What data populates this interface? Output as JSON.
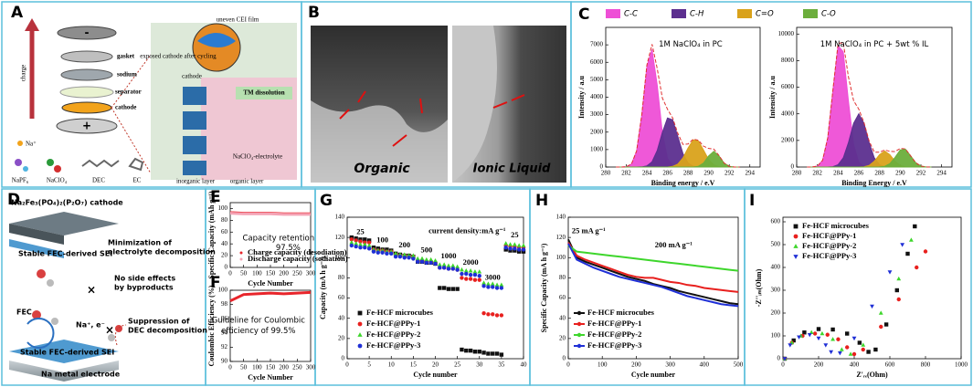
{
  "figure": {
    "letters": [
      "A",
      "B",
      "C",
      "D",
      "E",
      "F",
      "G",
      "H",
      "I"
    ],
    "A": {
      "charge": "charge",
      "gasket": "gasket",
      "sodium": "sodium",
      "separator": "separator",
      "cathode": "cathode",
      "na": "Na⁺",
      "salt1": "NaPF₆",
      "salt2": "NaClO₄",
      "dec": "DEC",
      "ec": "EC",
      "cei": "uneven CEI film",
      "exposed": "exposed cathode after cycling",
      "cathode2": "cathode",
      "tm": "TM dissolution",
      "inorganic": "inorganic layer",
      "organic": "organic layer",
      "electrolyte": "NaClO₄-electrolyte"
    },
    "B": {
      "left": "Organic",
      "right": "Ionic Liquid"
    },
    "D": {
      "cathode": "Na₂Fe₃(PO₄)₂(P₂O₇) cathode",
      "sei1": "Stable FEC-derived SEI",
      "min1": "Minimization of",
      "min2": "electrolyte decomposition",
      "side1": "No side effects",
      "side2": "by byproducts",
      "fec": "FEC",
      "nae": "Na⁺, e⁻",
      "sup1": "Suppression of",
      "sup2": "DEC decomposition",
      "sei2": "Stable FEC-derived SEI",
      "anode": "Na metal electrode"
    }
  },
  "chart_data": [
    {
      "type": "area",
      "x_label": "Binding energy / e.V",
      "y_label": "Intensity / a.u",
      "legend": "top",
      "annotations": [
        "1M NaClO₄ in PC"
      ],
      "x": [
        281,
        281.5,
        282,
        282.5,
        283,
        283.5,
        284,
        284.5,
        285,
        285.5,
        286,
        286.5,
        287,
        287.5,
        288,
        288.5,
        289,
        289.5,
        290,
        290.5,
        291,
        291.5,
        292,
        292.5,
        293
      ],
      "xlim": [
        280,
        295
      ],
      "xticks": [
        280,
        282,
        284,
        286,
        288,
        290,
        292,
        294
      ],
      "ylim": [
        0,
        8000
      ],
      "yticks": [
        0,
        1000,
        2000,
        3000,
        4000,
        5000,
        6000,
        7000
      ],
      "envelope_color": "#e03030",
      "envelope": [
        0,
        0,
        20,
        170,
        920,
        2980,
        5846,
        7033,
        5651,
        3958,
        3310,
        2815,
        1934,
        1295,
        1321,
        1596,
        1537,
        1195,
        1063,
        1028,
        662,
        227,
        40,
        3,
        0
      ],
      "series": [
        {
          "name": "C-C",
          "color": "#ee4fd6",
          "values": [
            0,
            0,
            20,
            170,
            920,
            2970,
            5780,
            6730,
            4710,
            1980,
            500,
            75,
            7,
            0,
            0,
            0,
            0,
            0,
            0,
            0,
            0,
            0,
            0,
            0,
            0
          ]
        },
        {
          "name": "C-H",
          "color": "#5c2f8f",
          "values": [
            0,
            0,
            0,
            0,
            0,
            10,
            66,
            303,
            941,
            1978,
            2810,
            2703,
            1759,
            775,
            230,
            46,
            6,
            0,
            0,
            0,
            0,
            0,
            0,
            0,
            0
          ]
        },
        {
          "name": "C=O",
          "color": "#d9a21b",
          "values": [
            0,
            0,
            0,
            0,
            0,
            0,
            0,
            0,
            0,
            0,
            0,
            37,
            168,
            520,
            1091,
            1550,
            1491,
            971,
            427,
            128,
            26,
            3,
            0,
            0,
            0
          ]
        },
        {
          "name": "C-O",
          "color": "#6cae3c",
          "values": [
            0,
            0,
            0,
            0,
            0,
            0,
            0,
            0,
            0,
            0,
            0,
            0,
            0,
            0,
            0,
            0,
            40,
            224,
            636,
            900,
            636,
            224,
            40,
            3,
            0
          ]
        }
      ]
    },
    {
      "type": "area",
      "x_label": "Binding Energy / e.V",
      "y_label": "Intensity / a.u",
      "annotations": [
        "1M NaClO₄ in PC + 5wt % IL"
      ],
      "x": [
        281,
        281.5,
        282,
        282.5,
        283,
        283.5,
        284,
        284.5,
        285,
        285.5,
        286,
        286.5,
        287,
        287.5,
        288,
        288.5,
        289,
        289.5,
        290,
        290.5,
        291,
        291.5,
        292,
        292.5,
        293
      ],
      "xlim": [
        280,
        295
      ],
      "xticks": [
        280,
        282,
        284,
        286,
        288,
        290,
        292,
        294
      ],
      "ylim": [
        0,
        10500
      ],
      "yticks": [
        0,
        2000,
        4000,
        6000,
        8000,
        10000
      ],
      "envelope_color": "#e03030",
      "envelope": [
        0,
        6,
        68,
        497,
        2186,
        5792,
        9295,
        9354,
        6776,
        4987,
        4346,
        3353,
        1950,
        1121,
        1112,
        1282,
        1181,
        1161,
        1397,
        1364,
        849,
        322,
        73,
        10,
        0
      ],
      "series": [
        {
          "color": "#ee4fd6",
          "values": [
            0,
            6,
            68,
            497,
            2186,
            5762,
            9119,
            8666,
            4946,
            1697,
            346,
            43,
            0,
            0,
            0,
            0,
            0,
            0,
            0,
            0,
            0,
            0,
            0,
            0,
            0
          ]
        },
        {
          "color": "#5c2f8f",
          "values": [
            0,
            0,
            0,
            0,
            0,
            30,
            176,
            688,
            1830,
            3290,
            4000,
            3290,
            1830,
            688,
            176,
            30,
            0,
            0,
            0,
            0,
            0,
            0,
            0,
            0,
            0
          ]
        },
        {
          "color": "#d9a21b",
          "values": [
            0,
            0,
            0,
            0,
            0,
            0,
            0,
            0,
            0,
            0,
            0,
            20,
            120,
            433,
            930,
            1200,
            930,
            433,
            120,
            20,
            0,
            0,
            0,
            0,
            0
          ]
        },
        {
          "color": "#6cae3c",
          "values": [
            0,
            0,
            0,
            0,
            0,
            0,
            0,
            0,
            0,
            0,
            0,
            0,
            0,
            0,
            6,
            52,
            251,
            728,
            1277,
            1344,
            849,
            322,
            73,
            10,
            0
          ]
        }
      ]
    },
    {
      "type": "line",
      "x_label": "Cycle Number",
      "y_label": "Specific Capacity (mAh g⁻¹)",
      "legend": "lower right",
      "annotations": [
        "Capacity retention",
        "97.5%"
      ],
      "x": [
        0,
        50,
        100,
        150,
        200,
        250,
        300
      ],
      "xlim": [
        0,
        300
      ],
      "xticks": [
        0,
        50,
        100,
        150,
        200,
        250,
        300
      ],
      "ylim": [
        0,
        110
      ],
      "yticks": [
        0,
        20,
        40,
        60,
        80,
        100
      ],
      "series": [
        {
          "name": "Charge capacity (desodiation)",
          "color": "#e8252b",
          "marker": "circle",
          "values": [
            93,
            92,
            92,
            92,
            91,
            91,
            91
          ]
        },
        {
          "name": "Discharge capacity (sodiation)",
          "color": "#f4a3b5",
          "marker": "circle",
          "values": [
            92,
            91,
            91,
            91,
            90,
            90,
            90
          ]
        }
      ]
    },
    {
      "type": "line",
      "x_label": "Cycle Number",
      "y_label": "Coulombic Efficiency (%)",
      "annotations": [
        "Guideline for Coulombic",
        "efficiency of 99.5%"
      ],
      "x": [
        0,
        50,
        100,
        150,
        200,
        250,
        300
      ],
      "xlim": [
        0,
        300
      ],
      "xticks": [
        0,
        50,
        100,
        150,
        200,
        250,
        300
      ],
      "ylim": [
        90,
        100
      ],
      "yticks": [
        90,
        92,
        94,
        96,
        98,
        100
      ],
      "series": [
        {
          "color": "#e8252b",
          "values": [
            98.5,
            99.4,
            99.5,
            99.6,
            99.5,
            99.6,
            99.7
          ]
        }
      ]
    },
    {
      "type": "scatter",
      "x_label": "Cycle number",
      "y_label": "Capacity (mA h g⁻¹)",
      "legend": "lower left",
      "annotations": [
        "current density:mA g⁻¹"
      ],
      "rate_labels": [
        "25",
        "100",
        "200",
        "500",
        "1000",
        "2000",
        "3000",
        "25"
      ],
      "x": [
        1,
        2,
        3,
        4,
        5,
        6,
        7,
        8,
        9,
        10,
        11,
        12,
        13,
        14,
        15,
        16,
        17,
        18,
        19,
        20,
        21,
        22,
        23,
        24,
        25,
        26,
        27,
        28,
        29,
        30,
        31,
        32,
        33,
        34,
        35,
        36,
        37,
        38,
        39,
        40
      ],
      "xlim": [
        0,
        40
      ],
      "xticks": [
        0,
        5,
        10,
        15,
        20,
        25,
        30,
        35,
        40
      ],
      "ylim": [
        0,
        140
      ],
      "yticks": [
        0,
        20,
        40,
        60,
        80,
        100,
        120,
        140
      ],
      "series": [
        {
          "name": "Fe-HCF microcubes",
          "color": "#111111",
          "marker": "square",
          "values": [
            120,
            119,
            118,
            118,
            117,
            110,
            109,
            108,
            108,
            107,
            104,
            103,
            102,
            102,
            101,
            96,
            96,
            95,
            95,
            94,
            70,
            70,
            69,
            69,
            69,
            9,
            8,
            8,
            7,
            7,
            6,
            5,
            5,
            5,
            4,
            108,
            107,
            107,
            106,
            106
          ]
        },
        {
          "name": "Fe-HCF@PPy-1",
          "color": "#e8201e",
          "marker": "circle",
          "values": [
            118,
            117,
            116,
            115,
            115,
            108,
            107,
            107,
            106,
            106,
            103,
            102,
            102,
            101,
            101,
            97,
            97,
            96,
            96,
            95,
            90,
            90,
            89,
            89,
            88,
            80,
            79,
            79,
            78,
            78,
            45,
            44,
            44,
            43,
            43,
            112,
            111,
            111,
            110,
            110
          ]
        },
        {
          "name": "Fe-HCF@PPy-2",
          "color": "#3ed62c",
          "marker": "triangle",
          "values": [
            115,
            114,
            113,
            113,
            112,
            108,
            107,
            107,
            106,
            106,
            104,
            103,
            103,
            102,
            102,
            99,
            99,
            98,
            98,
            97,
            93,
            93,
            92,
            92,
            91,
            88,
            87,
            87,
            86,
            86,
            75,
            74,
            74,
            73,
            73,
            114,
            113,
            113,
            112,
            112
          ]
        },
        {
          "name": "Fe-HCF@PPy-3",
          "color": "#1f2fd6",
          "marker": "circle",
          "values": [
            112,
            111,
            110,
            110,
            109,
            106,
            105,
            105,
            104,
            104,
            101,
            101,
            100,
            100,
            99,
            96,
            96,
            95,
            95,
            94,
            90,
            90,
            89,
            89,
            88,
            84,
            84,
            83,
            83,
            82,
            72,
            71,
            71,
            70,
            70,
            110,
            109,
            109,
            108,
            108
          ]
        }
      ]
    },
    {
      "type": "line",
      "x_label": "Cycle number",
      "y_label": "Specific Capacity (mA h g⁻¹)",
      "legend": "lower left",
      "annotations": [
        "25 mA g⁻¹",
        "200 mA g⁻¹"
      ],
      "x": [
        0,
        25,
        50,
        75,
        100,
        125,
        150,
        175,
        200,
        225,
        250,
        275,
        300,
        325,
        350,
        375,
        400,
        425,
        450,
        475,
        500
      ],
      "xlim": [
        0,
        500
      ],
      "xticks": [
        0,
        100,
        200,
        300,
        400,
        500
      ],
      "ylim": [
        0,
        140
      ],
      "yticks": [
        0,
        20,
        40,
        60,
        80,
        100,
        120,
        140
      ],
      "series": [
        {
          "name": "Fe-HCF microcubes",
          "color": "#111111",
          "values": [
            118,
            100,
            96,
            93,
            90,
            87,
            84,
            81,
            79,
            77,
            74,
            72,
            70,
            67,
            65,
            63,
            61,
            59,
            57,
            55,
            54
          ]
        },
        {
          "name": "Fe-HCF@PPy-1",
          "color": "#e8201e",
          "values": [
            115,
            102,
            98,
            95,
            92,
            89,
            86,
            83,
            81,
            80,
            80,
            78,
            76,
            75,
            73,
            72,
            70,
            69,
            68,
            67,
            66
          ]
        },
        {
          "name": "Fe-HCF@PPy-2",
          "color": "#3ed62c",
          "values": [
            112,
            106,
            105,
            104,
            103,
            102,
            101,
            100,
            99,
            98,
            97,
            96,
            95,
            94,
            93,
            92,
            91,
            90,
            89,
            88,
            87
          ]
        },
        {
          "name": "Fe-HCF@PPy-3",
          "color": "#1f2fd6",
          "values": [
            114,
            98,
            94,
            90,
            87,
            84,
            81,
            79,
            77,
            75,
            73,
            71,
            68,
            65,
            62,
            60,
            58,
            56,
            54,
            53,
            52
          ]
        }
      ]
    },
    {
      "type": "scatter",
      "x_label": "Z'ᵣₑ(Ohm)",
      "y_label": "-Z''ᵢₘ(Ohm)",
      "legend": "upper left",
      "xlim": [
        0,
        1000
      ],
      "xticks": [
        0,
        200,
        400,
        600,
        800,
        1000
      ],
      "ylim": [
        0,
        620
      ],
      "yticks": [
        0,
        100,
        200,
        300,
        400,
        500,
        600
      ],
      "series": [
        {
          "name": "Fe-HCF microcubes",
          "color": "#111111",
          "marker": "square",
          "x": [
            10,
            60,
            120,
            200,
            280,
            360,
            430,
            480,
            520,
            580,
            640,
            700,
            740
          ],
          "values": [
            0,
            80,
            115,
            130,
            128,
            110,
            70,
            30,
            40,
            150,
            300,
            460,
            580
          ]
        },
        {
          "name": "Fe-HCF@PPy-1",
          "color": "#e8201e",
          "marker": "circle",
          "x": [
            10,
            50,
            110,
            180,
            250,
            310,
            360,
            400,
            450,
            550,
            650,
            750,
            800
          ],
          "values": [
            0,
            70,
            100,
            110,
            105,
            85,
            50,
            20,
            40,
            140,
            260,
            400,
            470
          ]
        },
        {
          "name": "Fe-HCF@PPy-2",
          "color": "#3ed62c",
          "marker": "triangle",
          "x": [
            10,
            50,
            100,
            160,
            220,
            280,
            330,
            380,
            450,
            550,
            650,
            720
          ],
          "values": [
            0,
            70,
            100,
            115,
            110,
            85,
            40,
            20,
            60,
            200,
            350,
            520
          ]
        },
        {
          "name": "Fe-HCF@PPy-3",
          "color": "#1f2fd6",
          "marker": "down",
          "x": [
            10,
            40,
            90,
            150,
            200,
            240,
            270,
            320,
            400,
            500,
            600,
            670
          ],
          "values": [
            0,
            60,
            95,
            105,
            90,
            60,
            30,
            25,
            90,
            230,
            380,
            500
          ]
        }
      ]
    }
  ]
}
